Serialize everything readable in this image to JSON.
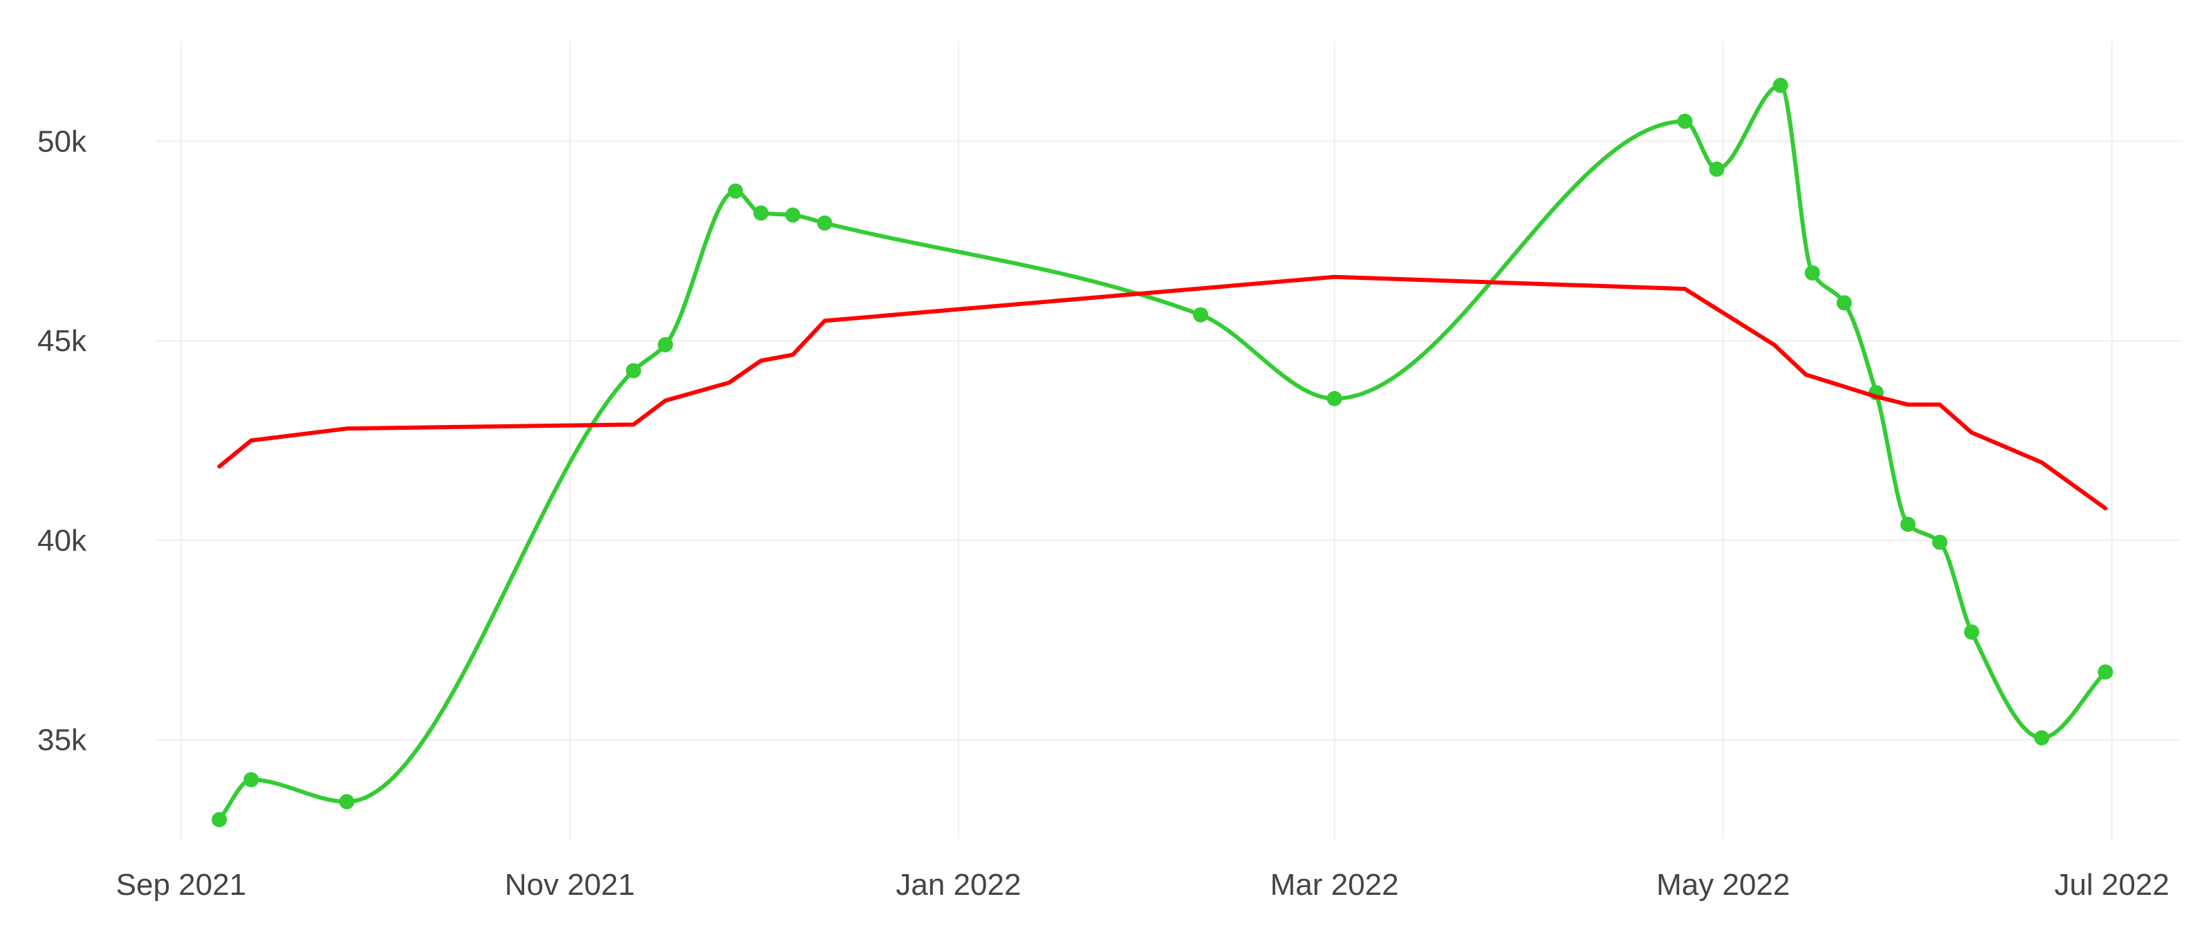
{
  "chart_data": {
    "type": "line",
    "title": "",
    "xlabel": "",
    "ylabel": "",
    "xlim": [
      "2021-08-28",
      "2022-07-12"
    ],
    "ylim": [
      32500,
      52500
    ],
    "x_ticks": [
      {
        "date": "2021-09-01",
        "label": "Sep 2021"
      },
      {
        "date": "2021-11-01",
        "label": "Nov 2021"
      },
      {
        "date": "2022-01-01",
        "label": "Jan 2022"
      },
      {
        "date": "2022-03-01",
        "label": "Mar 2022"
      },
      {
        "date": "2022-05-01",
        "label": "May 2022"
      },
      {
        "date": "2022-07-01",
        "label": "Jul 2022"
      }
    ],
    "y_ticks": [
      {
        "value": 35000,
        "label": "35k"
      },
      {
        "value": 40000,
        "label": "40k"
      },
      {
        "value": 45000,
        "label": "45k"
      },
      {
        "value": 50000,
        "label": "50k"
      }
    ],
    "grid": true,
    "legend": "none",
    "series": [
      {
        "color": "#33cc33",
        "smooth": true,
        "markers": true,
        "points": [
          {
            "x": "2021-09-07",
            "y": 33000
          },
          {
            "x": "2021-09-12",
            "y": 34000
          },
          {
            "x": "2021-09-27",
            "y": 33450
          },
          {
            "x": "2021-11-11",
            "y": 44250
          },
          {
            "x": "2021-11-16",
            "y": 44900
          },
          {
            "x": "2021-11-27",
            "y": 48750
          },
          {
            "x": "2021-12-01",
            "y": 48200
          },
          {
            "x": "2021-12-06",
            "y": 48150
          },
          {
            "x": "2021-12-11",
            "y": 47950
          },
          {
            "x": "2022-02-08",
            "y": 45650
          },
          {
            "x": "2022-03-01",
            "y": 43550
          },
          {
            "x": "2022-04-25",
            "y": 50500
          },
          {
            "x": "2022-04-30",
            "y": 49300
          },
          {
            "x": "2022-05-10",
            "y": 51400
          },
          {
            "x": "2022-05-15",
            "y": 46700
          },
          {
            "x": "2022-05-20",
            "y": 45950
          },
          {
            "x": "2022-05-25",
            "y": 43700
          },
          {
            "x": "2022-05-30",
            "y": 40400
          },
          {
            "x": "2022-06-04",
            "y": 39950
          },
          {
            "x": "2022-06-09",
            "y": 37700
          },
          {
            "x": "2022-06-20",
            "y": 35050
          },
          {
            "x": "2022-06-30",
            "y": 36700
          }
        ]
      },
      {
        "color": "#ff0000",
        "smooth": false,
        "markers": false,
        "points": [
          {
            "x": "2021-09-07",
            "y": 41850
          },
          {
            "x": "2021-09-12",
            "y": 42500
          },
          {
            "x": "2021-09-27",
            "y": 42800
          },
          {
            "x": "2021-11-11",
            "y": 42900
          },
          {
            "x": "2021-11-16",
            "y": 43500
          },
          {
            "x": "2021-11-26",
            "y": 43950
          },
          {
            "x": "2021-12-01",
            "y": 44500
          },
          {
            "x": "2021-12-06",
            "y": 44650
          },
          {
            "x": "2021-12-11",
            "y": 45500
          },
          {
            "x": "2022-03-01",
            "y": 46600
          },
          {
            "x": "2022-04-25",
            "y": 46300
          },
          {
            "x": "2022-05-09",
            "y": 44900
          },
          {
            "x": "2022-05-14",
            "y": 44150
          },
          {
            "x": "2022-05-25",
            "y": 43600
          },
          {
            "x": "2022-05-30",
            "y": 43400
          },
          {
            "x": "2022-06-04",
            "y": 43400
          },
          {
            "x": "2022-06-09",
            "y": 42700
          },
          {
            "x": "2022-06-20",
            "y": 41950
          },
          {
            "x": "2022-06-30",
            "y": 40800
          }
        ]
      }
    ]
  }
}
